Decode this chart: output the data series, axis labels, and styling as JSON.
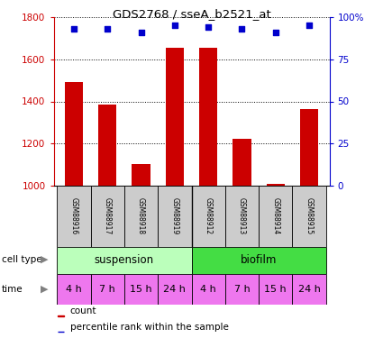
{
  "title": "GDS2768 / sseA_b2521_at",
  "samples": [
    "GSM88916",
    "GSM88917",
    "GSM88918",
    "GSM88919",
    "GSM88912",
    "GSM88913",
    "GSM88914",
    "GSM88915"
  ],
  "counts": [
    1490,
    1385,
    1105,
    1655,
    1655,
    1225,
    1010,
    1365
  ],
  "percentiles": [
    93,
    93,
    91,
    95,
    94,
    93,
    91,
    95
  ],
  "ylim_left": [
    1000,
    1800
  ],
  "ylim_right": [
    0,
    100
  ],
  "yticks_left": [
    1000,
    1200,
    1400,
    1600,
    1800
  ],
  "yticks_right": [
    0,
    25,
    50,
    75,
    100
  ],
  "ytick_labels_right": [
    "0",
    "25",
    "50",
    "75",
    "100%"
  ],
  "bar_color": "#cc0000",
  "dot_color": "#0000cc",
  "cell_types": [
    "suspension",
    "biofilm"
  ],
  "cell_type_colors": [
    "#bbffbb",
    "#44dd44"
  ],
  "time_labels": [
    "4 h",
    "7 h",
    "15 h",
    "24 h",
    "4 h",
    "7 h",
    "15 h",
    "24 h"
  ],
  "time_color": "#ee77ee",
  "time_color_dark": "#cc44cc",
  "sample_box_color": "#cccccc",
  "legend_count_color": "#cc0000",
  "legend_pct_color": "#0000cc"
}
